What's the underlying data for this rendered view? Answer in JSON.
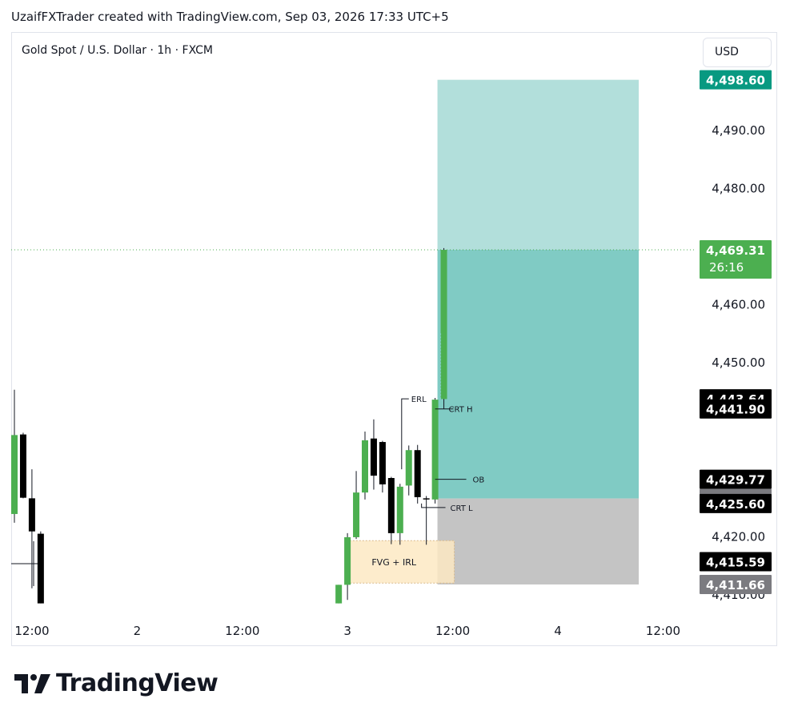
{
  "header": {
    "credit": "UzaifFXTrader created with TradingView.com, Sep 03, 2026 17:33 UTC+5"
  },
  "chart_header": {
    "symbol": "Gold Spot / U.S. Dollar · 1h · FXCM",
    "currency": "USD"
  },
  "brand": {
    "name": "TradingView"
  },
  "colors": {
    "bull": "#4caf50",
    "bear": "#000000",
    "target_zone": "#b2dfdb",
    "profit_zone": "#80cbc4",
    "stop_zone": "#c4c4c4",
    "fvg_zone": "#fde9c3",
    "target_label": "#089981",
    "current_label": "#4caf50",
    "dark_label": "#000000",
    "gray_label": "#7b7b80"
  },
  "chart_data": {
    "type": "candlestick",
    "ylim": [
      4408.4,
      4504.3
    ],
    "y_ticks": [
      "4,490.00",
      "4,480.00",
      "4,460.00",
      "4,450.00",
      "4,420.00",
      "4,410.00"
    ],
    "x_ticks": [
      {
        "label": "12:00",
        "slot": 0
      },
      {
        "label": "2",
        "slot": 12
      },
      {
        "label": "12:00",
        "slot": 24
      },
      {
        "label": "3",
        "slot": 36
      },
      {
        "label": "12:00",
        "slot": 48
      },
      {
        "label": "4",
        "slot": 60
      },
      {
        "label": "12:00",
        "slot": 72
      }
    ],
    "candles": [
      {
        "slot": 0,
        "o": 4423.8,
        "h": 4445.2,
        "l": 4422.3,
        "c": 4437.4
      },
      {
        "slot": 1,
        "o": 4437.5,
        "h": 4437.8,
        "l": 4426.5,
        "c": 4426.6
      },
      {
        "slot": 2,
        "o": 4426.5,
        "h": 4431.5,
        "l": 4411.0,
        "c": 4420.8
      },
      {
        "slot": 3,
        "o": 4420.4,
        "h": 4420.8,
        "l": 4408.4,
        "c": 4408.4
      },
      {
        "slot": 37,
        "o": 4408.4,
        "h": 4411.6,
        "l": 4408.4,
        "c": 4411.6
      },
      {
        "slot": 38,
        "o": 4411.6,
        "h": 4420.5,
        "l": 4409.0,
        "c": 4419.8
      },
      {
        "slot": 39,
        "o": 4419.8,
        "h": 4431.2,
        "l": 4419.5,
        "c": 4427.5
      },
      {
        "slot": 40,
        "o": 4427.5,
        "h": 4438.0,
        "l": 4426.3,
        "c": 4436.5
      },
      {
        "slot": 41,
        "o": 4436.8,
        "h": 4440.1,
        "l": 4428.0,
        "c": 4430.4
      },
      {
        "slot": 42,
        "o": 4436.2,
        "h": 4436.4,
        "l": 4427.5,
        "c": 4428.9
      },
      {
        "slot": 43,
        "o": 4430.0,
        "h": 4430.2,
        "l": 4418.6,
        "c": 4420.5
      },
      {
        "slot": 44,
        "o": 4420.5,
        "h": 4429.0,
        "l": 4418.5,
        "c": 4428.5
      },
      {
        "slot": 45,
        "o": 4428.7,
        "h": 4435.6,
        "l": 4427.0,
        "c": 4434.8
      },
      {
        "slot": 46,
        "o": 4434.8,
        "h": 4435.7,
        "l": 4425.6,
        "c": 4426.7
      },
      {
        "slot": 47,
        "o": 4426.5,
        "h": 4426.9,
        "l": 4418.5,
        "c": 4426.3
      },
      {
        "slot": 48,
        "o": 4426.3,
        "h": 4443.8,
        "l": 4425.6,
        "c": 4443.5
      },
      {
        "slot": 49,
        "o": 4443.6,
        "h": 4469.6,
        "l": 4441.9,
        "c": 4469.3
      }
    ],
    "position": {
      "target": 4498.6,
      "entry": 4426.47,
      "stop": 4411.66,
      "current": 4469.31
    },
    "annotations": [
      {
        "text": "CRT H",
        "price": 4441.9
      },
      {
        "text": "OB",
        "price": 4429.77
      },
      {
        "text": "CRT L",
        "price": 4425.6
      },
      {
        "text": "ERL",
        "price": 4443.64
      },
      {
        "text": "FVG + IRL",
        "price_top": 4419.2,
        "price_bottom": 4411.9
      }
    ],
    "price_labels": [
      {
        "text": "4,498.60",
        "style": "target"
      },
      {
        "text": "4,469.31",
        "sub": "26:16",
        "style": "current"
      },
      {
        "text": "4,443.64",
        "style": "dark"
      },
      {
        "text": "4,441.90",
        "style": "dark"
      },
      {
        "text": "4,429.77",
        "style": "dark"
      },
      {
        "text": "4,426.47",
        "style": "gray"
      },
      {
        "text": "4,425.60",
        "style": "dark"
      },
      {
        "text": "4,415.59",
        "style": "dark"
      },
      {
        "text": "4,411.66",
        "style": "gray"
      }
    ]
  }
}
